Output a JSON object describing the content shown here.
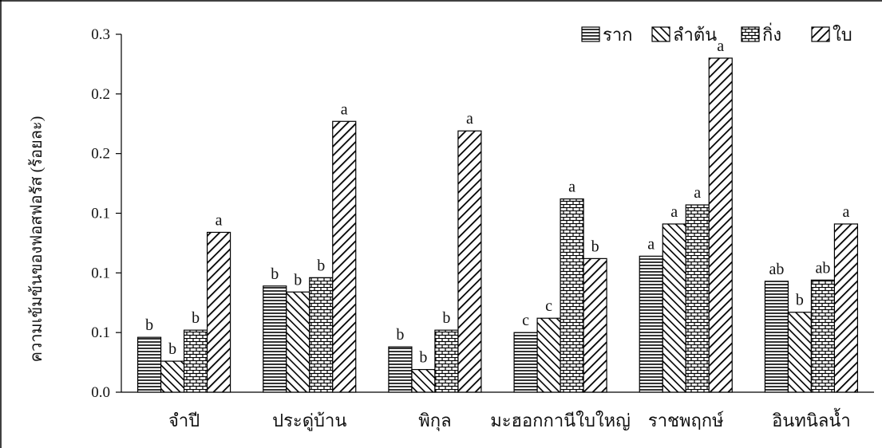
{
  "chart_data": {
    "type": "bar",
    "title": "",
    "xlabel": "",
    "ylabel": "ความเข้มข้นของฟอสฟอรัส (ร้อยละ)",
    "y_axis": {
      "min": 0,
      "max": 0.3,
      "tick_values": [
        0,
        0.05,
        0.1,
        0.15,
        0.2,
        0.25,
        0.3
      ],
      "tick_labels": [
        "0.0",
        "0.1",
        "0.1",
        "0.1",
        "0.2",
        "0.2",
        "0.3"
      ]
    },
    "categories": [
      "จำปี",
      "ประดู่บ้าน",
      "พิกุล",
      "มะฮอกกานีใบใหญ่",
      "ราชพฤกษ์",
      "อินทนิลน้ำ"
    ],
    "series": [
      {
        "name": "ราก",
        "pattern": "horizontal-lines",
        "values": [
          0.046,
          0.089,
          0.038,
          0.05,
          0.114,
          0.093
        ],
        "labels": [
          "b",
          "b",
          "b",
          "c",
          "a",
          "ab"
        ]
      },
      {
        "name": "ลำต้น",
        "pattern": "back-diagonal",
        "values": [
          0.026,
          0.084,
          0.019,
          0.062,
          0.141,
          0.067
        ],
        "labels": [
          "b",
          "b",
          "b",
          "c",
          "a",
          "b"
        ]
      },
      {
        "name": "กิ่ง",
        "pattern": "brick",
        "values": [
          0.052,
          0.096,
          0.052,
          0.162,
          0.157,
          0.094
        ],
        "labels": [
          "b",
          "b",
          "b",
          "a",
          "a",
          "ab"
        ]
      },
      {
        "name": "ใบ",
        "pattern": "forward-diagonal",
        "values": [
          0.134,
          0.227,
          0.219,
          0.112,
          0.28,
          0.141
        ],
        "labels": [
          "a",
          "a",
          "a",
          "b",
          "a",
          "a"
        ]
      }
    ],
    "legend": {
      "position": "top-right"
    },
    "grid": false
  }
}
